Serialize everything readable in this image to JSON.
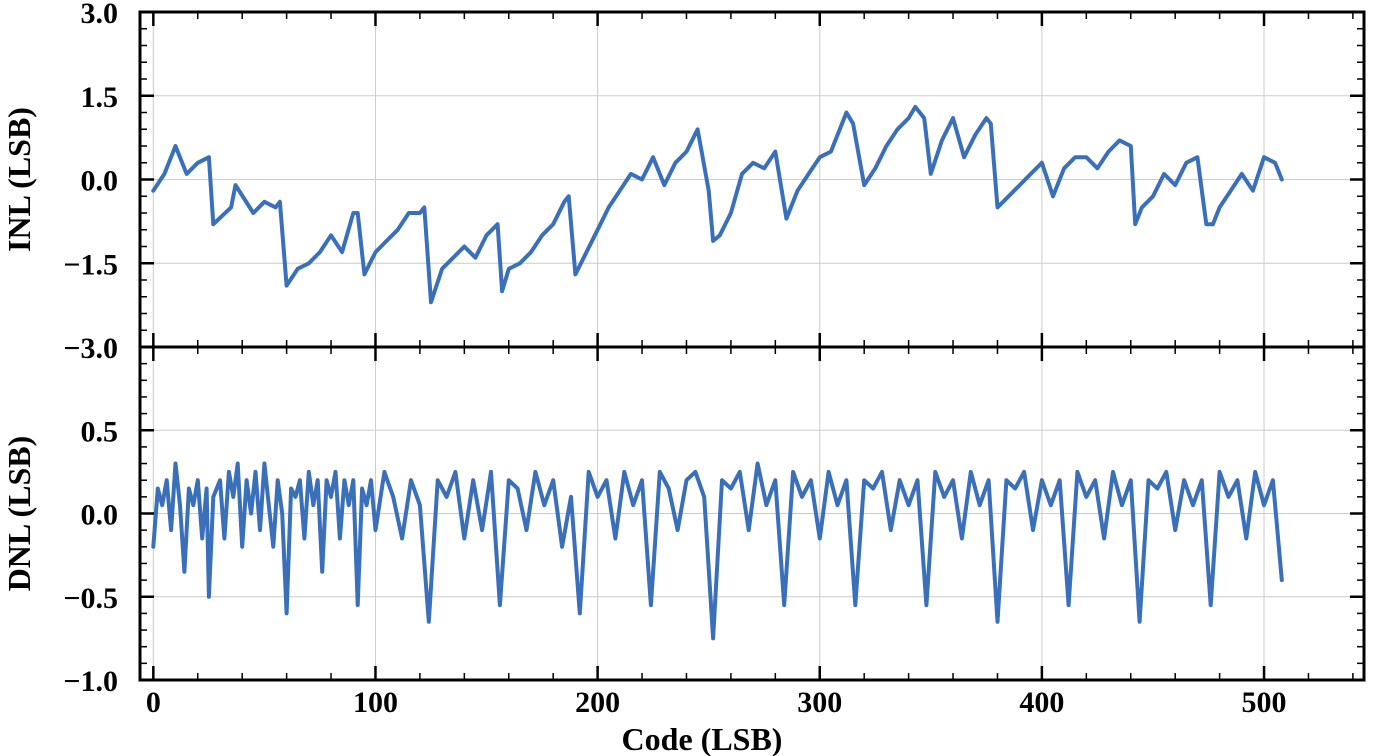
{
  "chart_data": {
    "type": "line",
    "line_color": "#3a6fba",
    "grid": true,
    "xlabel": "Code (LSB)",
    "xlim": [
      -6,
      545
    ],
    "xticks": [
      0,
      100,
      200,
      300,
      400,
      500
    ],
    "xtick_labels": [
      "0",
      "100",
      "200",
      "300",
      "400",
      "500"
    ],
    "panels": [
      {
        "id": "inl",
        "ylabel": "INL (LSB)",
        "ylim": [
          -3.0,
          3.0
        ],
        "yticks": [
          -3.0,
          -1.5,
          0.0,
          1.5,
          3.0
        ],
        "ytick_labels": [
          "−3.0",
          "−1.5",
          "0.0",
          "1.5",
          "3.0"
        ],
        "series": [
          {
            "x": [
              0,
              5,
              10,
              15,
              20,
              25,
              27,
              35,
              37,
              45,
              50,
              55,
              57,
              60,
              65,
              70,
              75,
              80,
              85,
              90,
              92,
              95,
              100,
              105,
              110,
              115,
              120,
              122,
              125,
              130,
              135,
              140,
              145,
              150,
              155,
              157,
              160,
              165,
              170,
              175,
              180,
              185,
              187,
              190,
              195,
              200,
              205,
              210,
              215,
              220,
              225,
              230,
              235,
              240,
              245,
              250,
              252,
              255,
              260,
              265,
              270,
              275,
              280,
              285,
              290,
              295,
              300,
              305,
              310,
              312,
              315,
              320,
              325,
              330,
              335,
              340,
              343,
              347,
              350,
              355,
              360,
              365,
              370,
              375,
              377,
              380,
              385,
              390,
              395,
              400,
              405,
              410,
              415,
              420,
              425,
              430,
              435,
              440,
              442,
              445,
              450,
              455,
              460,
              465,
              470,
              474,
              477,
              480,
              485,
              490,
              495,
              500,
              505,
              508
            ],
            "values": [
              -0.2,
              0.1,
              0.6,
              0.1,
              0.3,
              0.4,
              -0.8,
              -0.5,
              -0.1,
              -0.6,
              -0.4,
              -0.5,
              -0.4,
              -1.9,
              -1.6,
              -1.5,
              -1.3,
              -1.0,
              -1.3,
              -0.6,
              -0.6,
              -1.7,
              -1.3,
              -1.1,
              -0.9,
              -0.6,
              -0.6,
              -0.5,
              -2.2,
              -1.6,
              -1.4,
              -1.2,
              -1.4,
              -1.0,
              -0.8,
              -2.0,
              -1.6,
              -1.5,
              -1.3,
              -1.0,
              -0.8,
              -0.4,
              -0.3,
              -1.7,
              -1.3,
              -0.9,
              -0.5,
              -0.2,
              0.1,
              0.0,
              0.4,
              -0.1,
              0.3,
              0.5,
              0.9,
              -0.2,
              -1.1,
              -1.0,
              -0.6,
              0.1,
              0.3,
              0.2,
              0.5,
              -0.7,
              -0.2,
              0.1,
              0.4,
              0.5,
              1.0,
              1.2,
              1.0,
              -0.1,
              0.2,
              0.6,
              0.9,
              1.1,
              1.3,
              1.1,
              0.1,
              0.7,
              1.1,
              0.4,
              0.8,
              1.1,
              1.0,
              -0.5,
              -0.3,
              -0.1,
              0.1,
              0.3,
              -0.3,
              0.2,
              0.4,
              0.4,
              0.2,
              0.5,
              0.7,
              0.6,
              -0.8,
              -0.5,
              -0.3,
              0.1,
              -0.1,
              0.3,
              0.4,
              -0.8,
              -0.8,
              -0.5,
              -0.2,
              0.1,
              -0.2,
              0.4,
              0.3,
              0.0
            ]
          }
        ]
      },
      {
        "id": "dnl",
        "ylabel": "DNL (LSB)",
        "ylim": [
          -1.0,
          1.0
        ],
        "yticks": [
          -1.0,
          -0.5,
          0.0,
          0.5
        ],
        "ytick_labels": [
          "−1.0",
          "−0.5",
          "0.0",
          "0.5"
        ],
        "series": [
          {
            "x": [
              0,
              2,
              4,
              6,
              8,
              10,
              12,
              14,
              16,
              18,
              20,
              22,
              24,
              25,
              27,
              30,
              32,
              34,
              36,
              38,
              40,
              42,
              44,
              46,
              48,
              50,
              52,
              54,
              56,
              58,
              60,
              62,
              64,
              66,
              68,
              70,
              72,
              74,
              76,
              78,
              80,
              82,
              84,
              86,
              88,
              90,
              92,
              94,
              96,
              98,
              100,
              104,
              108,
              112,
              116,
              120,
              124,
              128,
              132,
              136,
              140,
              144,
              148,
              152,
              156,
              160,
              164,
              168,
              172,
              176,
              180,
              184,
              188,
              192,
              196,
              200,
              204,
              208,
              212,
              216,
              220,
              224,
              228,
              232,
              236,
              240,
              244,
              248,
              252,
              256,
              260,
              264,
              268,
              272,
              276,
              280,
              284,
              288,
              292,
              296,
              300,
              304,
              308,
              312,
              316,
              320,
              324,
              328,
              332,
              336,
              340,
              344,
              348,
              352,
              356,
              360,
              364,
              368,
              372,
              376,
              380,
              384,
              388,
              392,
              396,
              400,
              404,
              408,
              412,
              416,
              420,
              424,
              428,
              432,
              436,
              440,
              444,
              448,
              452,
              456,
              460,
              464,
              468,
              472,
              476,
              480,
              484,
              488,
              492,
              496,
              500,
              504,
              508
            ],
            "values": [
              -0.2,
              0.15,
              0.05,
              0.2,
              -0.1,
              0.3,
              0.05,
              -0.35,
              0.15,
              0.05,
              0.2,
              -0.15,
              0.15,
              -0.5,
              0.1,
              0.2,
              -0.15,
              0.25,
              0.1,
              0.3,
              -0.2,
              0.2,
              0.0,
              0.25,
              -0.1,
              0.3,
              0.05,
              -0.2,
              0.2,
              0.0,
              -0.6,
              0.15,
              0.1,
              0.2,
              -0.15,
              0.25,
              0.05,
              0.2,
              -0.35,
              0.2,
              0.1,
              0.25,
              -0.15,
              0.2,
              0.05,
              0.2,
              -0.55,
              0.15,
              0.05,
              0.2,
              -0.1,
              0.25,
              0.1,
              -0.15,
              0.2,
              0.05,
              -0.65,
              0.2,
              0.1,
              0.25,
              -0.15,
              0.2,
              -0.1,
              0.25,
              -0.55,
              0.2,
              0.15,
              -0.1,
              0.25,
              0.05,
              0.2,
              -0.2,
              0.1,
              -0.6,
              0.25,
              0.1,
              0.2,
              -0.15,
              0.25,
              0.05,
              0.2,
              -0.55,
              0.25,
              0.15,
              -0.1,
              0.2,
              0.25,
              0.1,
              -0.75,
              0.2,
              0.15,
              0.25,
              -0.1,
              0.3,
              0.05,
              0.2,
              -0.55,
              0.25,
              0.1,
              0.2,
              -0.15,
              0.25,
              0.05,
              0.2,
              -0.55,
              0.2,
              0.15,
              0.25,
              -0.1,
              0.2,
              0.05,
              0.2,
              -0.55,
              0.25,
              0.1,
              0.2,
              -0.15,
              0.25,
              0.05,
              0.2,
              -0.65,
              0.2,
              0.15,
              0.25,
              -0.1,
              0.2,
              0.05,
              0.2,
              -0.55,
              0.25,
              0.1,
              0.2,
              -0.15,
              0.25,
              0.05,
              0.2,
              -0.65,
              0.2,
              0.15,
              0.25,
              -0.1,
              0.2,
              0.05,
              0.2,
              -0.55,
              0.25,
              0.1,
              0.2,
              -0.15,
              0.25,
              0.05,
              0.2,
              -0.4
            ]
          }
        ]
      }
    ]
  }
}
